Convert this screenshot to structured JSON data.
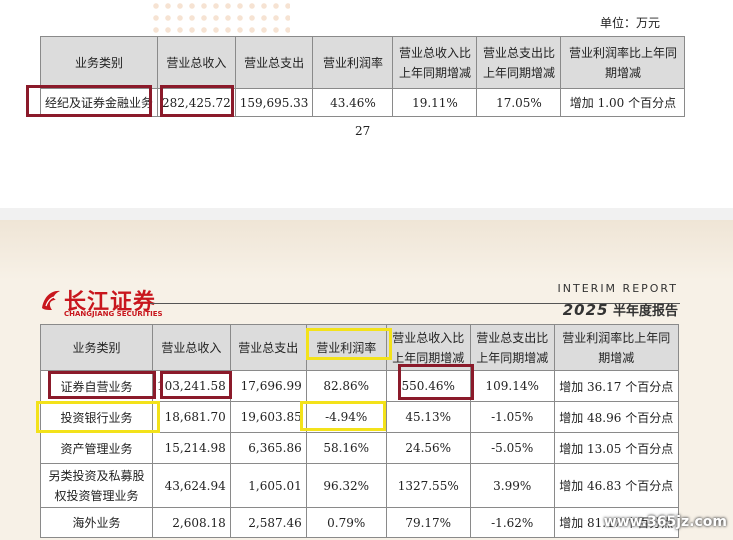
{
  "top": {
    "unit": "单位：万元",
    "headers": [
      "业务类别",
      "营业总收入",
      "营业总支出",
      "营业利润率",
      "营业总收入比上年同期增减",
      "营业总支出比上年同期增减",
      "营业利润率比上年同期增减"
    ],
    "rows": [
      [
        "经纪及证券金融业务",
        "282,425.72",
        "159,695.33",
        "43.46%",
        "19.11%",
        "17.05%",
        "增加 1.00 个百分点"
      ]
    ],
    "page_number": "27"
  },
  "bottom": {
    "logo_cn": "长江证券",
    "logo_en": "CHANGJIANG SECURITIES",
    "interim": "INTERIM REPORT",
    "report_year": "2025",
    "report_label": "半年度报告",
    "headers": [
      "业务类别",
      "营业总收入",
      "营业总支出",
      "营业利润率",
      "营业总收入比上年同期增减",
      "营业总支出比上年同期增减",
      "营业利润率比上年同期增减"
    ],
    "rows": [
      [
        "证券自营业务",
        "103,241.58",
        "17,696.99",
        "82.86%",
        "550.46%",
        "109.14%",
        "增加 36.17 个百分点"
      ],
      [
        "投资银行业务",
        "18,681.70",
        "19,603.85",
        "-4.94%",
        "45.13%",
        "-1.05%",
        "增加 48.96 个百分点"
      ],
      [
        "资产管理业务",
        "15,214.98",
        "6,365.86",
        "58.16%",
        "24.56%",
        "-5.05%",
        "增加 13.05 个百分点"
      ],
      [
        "另类投资及私募股权投资管理业务",
        "43,624.94",
        "1,605.01",
        "96.32%",
        "1327.55%",
        "3.99%",
        "增加 46.83 个百分点"
      ],
      [
        "海外业务",
        "2,608.18",
        "2,587.46",
        "0.79%",
        "79.17%",
        "-1.62%",
        "增加 81.47 个百分点"
      ]
    ]
  },
  "watermark": "www.365jz.com",
  "colors": {
    "highlight_red": "#8b1a2a",
    "highlight_yellow": "#f3e21a",
    "brand_red": "#c8161d"
  }
}
